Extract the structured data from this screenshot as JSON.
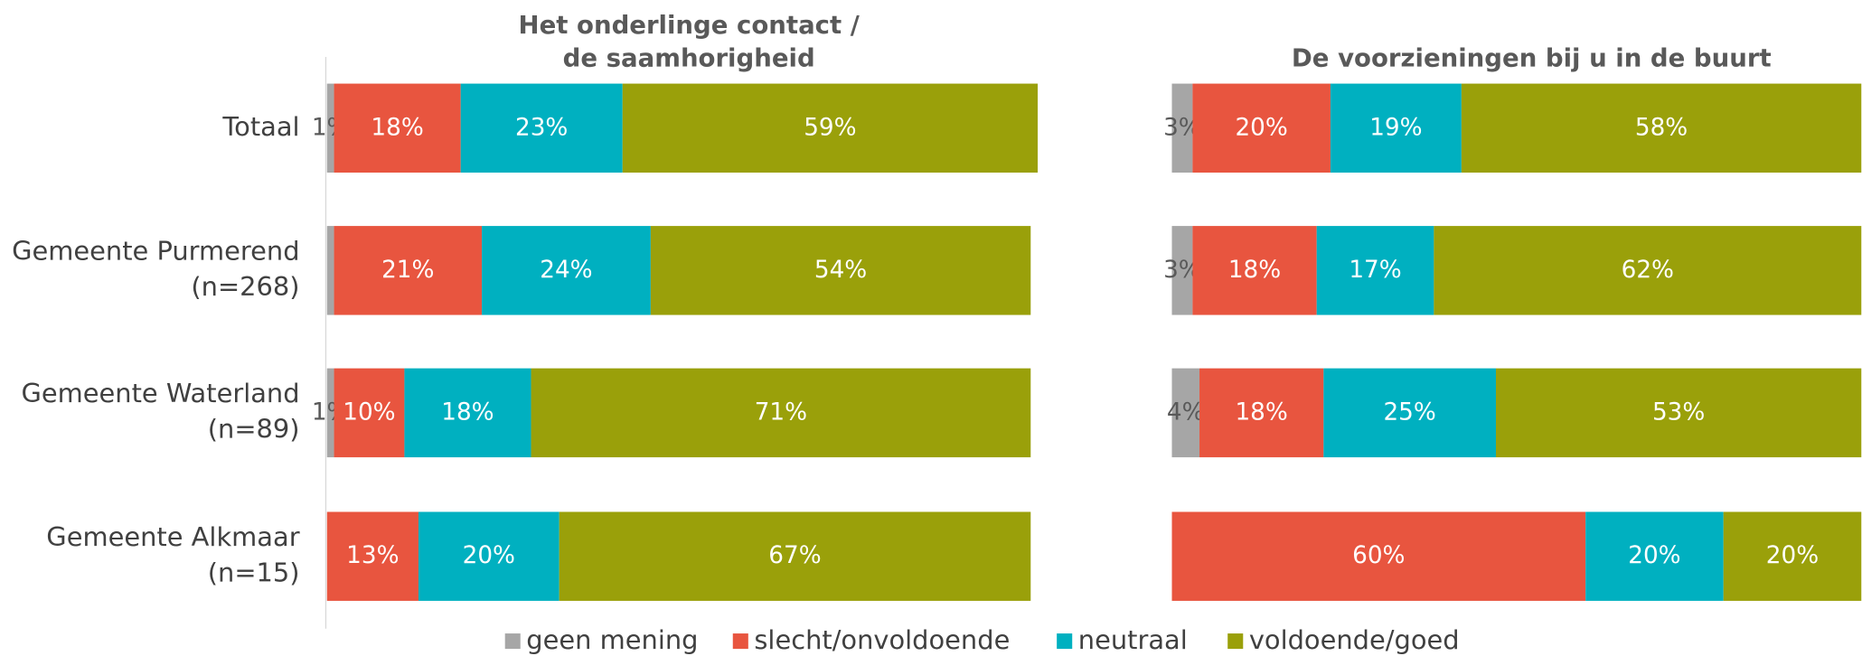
{
  "chart_data": [
    {
      "type": "stacked-bar-horizontal",
      "title": [
        "Het onderlinge contact /",
        "de saamhorigheid"
      ],
      "categories": [
        [
          "Totaal"
        ],
        [
          "Gemeente Purmerend",
          "(n=268)"
        ],
        [
          "Gemeente Waterland",
          "(n=89)"
        ],
        [
          "Gemeente Alkmaar",
          "(n=15)"
        ]
      ],
      "xlim": [
        0,
        100
      ],
      "series": [
        {
          "name": "geen mening",
          "color": "#a6a6a6",
          "values": [
            1,
            1,
            1,
            null
          ],
          "value_labels": [
            "1%",
            null,
            "1%",
            null
          ]
        },
        {
          "name": "slecht/onvoldoende",
          "color": "#e8553f",
          "values": [
            18,
            21,
            10,
            13
          ],
          "value_labels": [
            "18%",
            "21%",
            "10%",
            "13%"
          ]
        },
        {
          "name": "neutraal",
          "color": "#00b0c0",
          "values": [
            23,
            24,
            18,
            20
          ],
          "value_labels": [
            "23%",
            "24%",
            "18%",
            "20%"
          ]
        },
        {
          "name": "voldoende/goed",
          "color": "#9aa00a",
          "values": [
            59,
            54,
            71,
            67
          ],
          "value_labels": [
            "59%",
            "54%",
            "71%",
            "67%"
          ]
        }
      ]
    },
    {
      "type": "stacked-bar-horizontal",
      "title": [
        "De voorzieningen bij u in de buurt"
      ],
      "xlim": [
        0,
        100
      ],
      "series": [
        {
          "color": "#a6a6a6",
          "values": [
            3,
            3,
            4,
            null
          ],
          "value_labels": [
            "3%",
            "3%",
            "4%",
            null
          ]
        },
        {
          "color": "#e8553f",
          "values": [
            20,
            18,
            18,
            60
          ],
          "value_labels": [
            "20%",
            "18%",
            "18%",
            "60%"
          ]
        },
        {
          "color": "#00b0c0",
          "values": [
            19,
            17,
            25,
            20
          ],
          "value_labels": [
            "19%",
            "17%",
            "25%",
            "20%"
          ]
        },
        {
          "color": "#9aa00a",
          "values": [
            58,
            62,
            53,
            20
          ],
          "value_labels": [
            "58%",
            "62%",
            "53%",
            "20%"
          ]
        }
      ]
    }
  ]
}
